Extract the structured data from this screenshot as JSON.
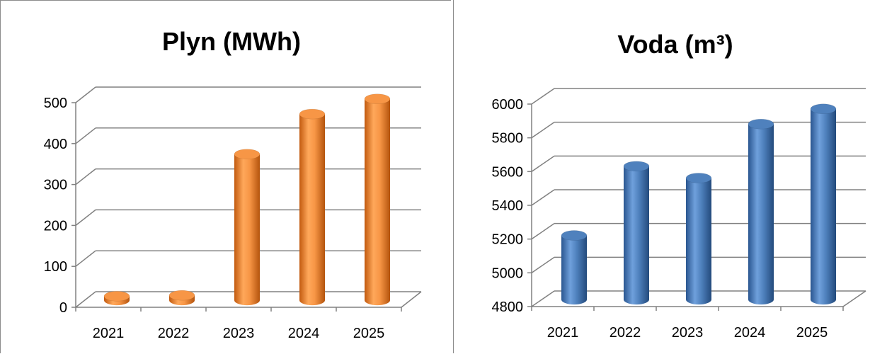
{
  "chart_data": [
    {
      "type": "bar",
      "title": "Plyn (MWh)",
      "xlabel": "",
      "ylabel": "",
      "categories": [
        "2021",
        "2022",
        "2023",
        "2024",
        "2025"
      ],
      "values": [
        10,
        12,
        357,
        455,
        492
      ],
      "ylim": [
        0,
        500
      ],
      "yticks": [
        "0",
        "100",
        "200",
        "300",
        "400",
        "500"
      ],
      "bar_color": "#f79646",
      "style": "3d-cylinder",
      "grid": true
    },
    {
      "type": "bar",
      "title": "Voda  (m³)",
      "xlabel": "",
      "ylabel": "",
      "categories": [
        "2021",
        "2022",
        "2023",
        "2024",
        "2025"
      ],
      "values": [
        5180,
        5590,
        5520,
        5840,
        5930
      ],
      "ylim": [
        4800,
        6000
      ],
      "yticks": [
        "4800",
        "5000",
        "5200",
        "5400",
        "5600",
        "5800",
        "6000"
      ],
      "bar_color": "#4f81bd",
      "style": "3d-cylinder",
      "grid": true
    }
  ]
}
